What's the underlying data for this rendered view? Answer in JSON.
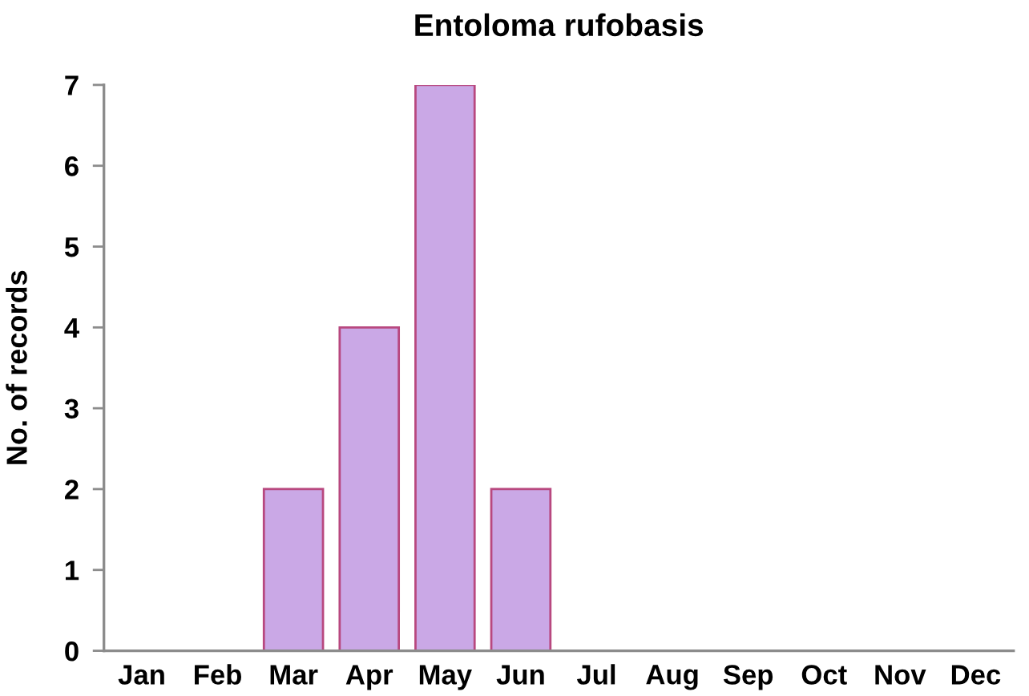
{
  "chart_data": {
    "type": "bar",
    "title": "Entoloma rufobasis",
    "ylabel": "No. of records",
    "categories": [
      "Jan",
      "Feb",
      "Mar",
      "Apr",
      "May",
      "Jun",
      "Jul",
      "Aug",
      "Sep",
      "Oct",
      "Nov",
      "Dec"
    ],
    "values": [
      0,
      0,
      2,
      4,
      7,
      2,
      0,
      0,
      0,
      0,
      0,
      0
    ],
    "color": "#caa8e6",
    "ylim": [
      0,
      7
    ],
    "yticks": [
      0,
      1,
      2,
      3,
      4,
      5,
      6,
      7
    ]
  }
}
